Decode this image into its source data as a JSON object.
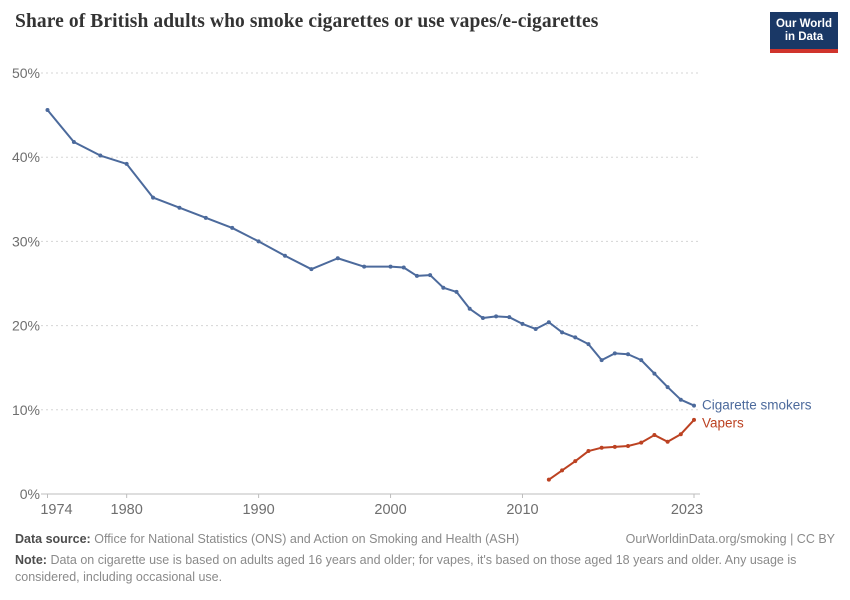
{
  "header": {
    "title": "Share of British adults who smoke cigarettes or use vapes/e-cigarettes",
    "logo": {
      "line1": "Our World",
      "line2": "in Data",
      "bg_color": "#1A3866",
      "accent_color": "#D0342C"
    }
  },
  "chart_data": {
    "type": "line",
    "title": "Share of British adults who smoke cigarettes or use vapes/e-cigarettes",
    "xlabel": "",
    "ylabel": "",
    "xlim": [
      1974,
      2023
    ],
    "ylim": [
      0,
      50
    ],
    "x_ticks": [
      1974,
      1980,
      1990,
      2000,
      2010,
      2023
    ],
    "y_ticks": [
      0,
      10,
      20,
      30,
      40,
      50
    ],
    "y_tick_suffix": "%",
    "grid": "horizontal-dashed",
    "legend_position": "line-end-labels",
    "colors": {
      "gridline": "#D5D5D5",
      "axis": "#BDBDBD",
      "tick_text": "#6E6E6E"
    },
    "series": [
      {
        "name": "Cigarette smokers",
        "color": "#4C6A9C",
        "points": [
          [
            1974,
            45.6
          ],
          [
            1976,
            41.8
          ],
          [
            1978,
            40.2
          ],
          [
            1980,
            39.2
          ],
          [
            1982,
            35.2
          ],
          [
            1984,
            34.0
          ],
          [
            1986,
            32.8
          ],
          [
            1988,
            31.6
          ],
          [
            1990,
            30.0
          ],
          [
            1992,
            28.3
          ],
          [
            1994,
            26.7
          ],
          [
            1996,
            28.0
          ],
          [
            1998,
            27.0
          ],
          [
            2000,
            27.0
          ],
          [
            2001,
            26.9
          ],
          [
            2002,
            25.9
          ],
          [
            2003,
            26.0
          ],
          [
            2004,
            24.5
          ],
          [
            2005,
            24.0
          ],
          [
            2006,
            22.0
          ],
          [
            2007,
            20.9
          ],
          [
            2008,
            21.1
          ],
          [
            2009,
            21.0
          ],
          [
            2010,
            20.2
          ],
          [
            2011,
            19.6
          ],
          [
            2012,
            20.4
          ],
          [
            2013,
            19.2
          ],
          [
            2014,
            18.6
          ],
          [
            2015,
            17.8
          ],
          [
            2016,
            15.9
          ],
          [
            2017,
            16.7
          ],
          [
            2018,
            16.6
          ],
          [
            2019,
            15.9
          ],
          [
            2020,
            14.3
          ],
          [
            2021,
            12.7
          ],
          [
            2022,
            11.2
          ],
          [
            2023,
            10.5
          ]
        ]
      },
      {
        "name": "Vapers",
        "color": "#BC4222",
        "points": [
          [
            2012,
            1.7
          ],
          [
            2013,
            2.8
          ],
          [
            2014,
            3.9
          ],
          [
            2015,
            5.1
          ],
          [
            2016,
            5.5
          ],
          [
            2017,
            5.6
          ],
          [
            2018,
            5.7
          ],
          [
            2019,
            6.1
          ],
          [
            2020,
            7.0
          ],
          [
            2021,
            6.2
          ],
          [
            2022,
            7.1
          ],
          [
            2023,
            8.8
          ]
        ]
      }
    ]
  },
  "footer": {
    "source_label": "Data source:",
    "source_text": "Office for National Statistics (ONS) and Action on Smoking and Health (ASH)",
    "link_text": "OurWorldinData.org/smoking | CC BY",
    "note_label": "Note:",
    "note_text": "Data on cigarette use is based on adults aged 16 years and older; for vapes, it's based on those aged 18 years and older. Any usage is considered, including occasional use."
  }
}
